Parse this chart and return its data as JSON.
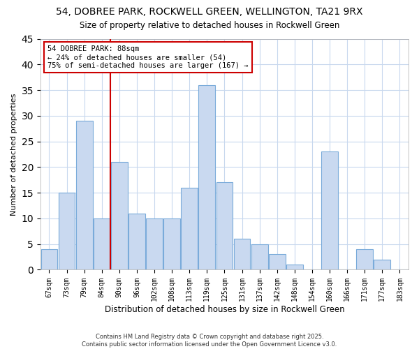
{
  "title": "54, DOBREE PARK, ROCKWELL GREEN, WELLINGTON, TA21 9RX",
  "subtitle": "Size of property relative to detached houses in Rockwell Green",
  "xlabel": "Distribution of detached houses by size in Rockwell Green",
  "ylabel": "Number of detached properties",
  "bin_labels": [
    "67sqm",
    "73sqm",
    "79sqm",
    "84sqm",
    "90sqm",
    "96sqm",
    "102sqm",
    "108sqm",
    "113sqm",
    "119sqm",
    "125sqm",
    "131sqm",
    "137sqm",
    "142sqm",
    "148sqm",
    "154sqm",
    "160sqm",
    "166sqm",
    "171sqm",
    "177sqm",
    "183sqm"
  ],
  "bar_values": [
    4,
    15,
    29,
    10,
    21,
    11,
    10,
    10,
    16,
    36,
    17,
    6,
    5,
    3,
    1,
    0,
    23,
    0,
    4,
    2,
    0
  ],
  "bar_facecolor": "#c9d9f0",
  "bar_edgecolor": "#7aabda",
  "vline_color": "#cc0000",
  "ylim": [
    0,
    45
  ],
  "yticks": [
    0,
    5,
    10,
    15,
    20,
    25,
    30,
    35,
    40,
    45
  ],
  "annotation_title": "54 DOBREE PARK: 88sqm",
  "annotation_line1": "← 24% of detached houses are smaller (54)",
  "annotation_line2": "75% of semi-detached houses are larger (167) →",
  "annotation_box_color": "#cc0000",
  "background_color": "#ffffff",
  "grid_color": "#c8d8ee",
  "footnote1": "Contains HM Land Registry data © Crown copyright and database right 2025.",
  "footnote2": "Contains public sector information licensed under the Open Government Licence v3.0."
}
